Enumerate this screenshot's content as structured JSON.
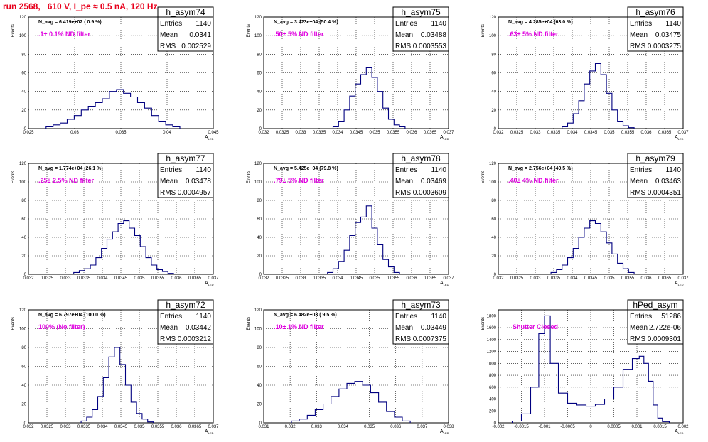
{
  "run_title": "run 2568,   610 V, I_pe ≈ 0.5 nA, 120 Hz",
  "stat_labels": {
    "entries": "Entries",
    "mean": "Mean",
    "rms": "RMS"
  },
  "chart_data": [
    {
      "type": "bar",
      "name": "h_asym74",
      "entries": "1140",
      "mean": "0.0341",
      "rms": "0.002529",
      "n_avg": "N_avg = 6.419e+02 ( 0.9 %)",
      "filter": ".1± 0.1% ND filter",
      "ylabel": "Events",
      "xlabel": "A",
      "xsub": "LED",
      "xlim": [
        0.024,
        0.045
      ],
      "ylim": [
        0,
        120
      ],
      "yticks": [
        0,
        20,
        40,
        60,
        80,
        100,
        120
      ],
      "xticks": [
        "0.025",
        "0.03",
        "0.035",
        "0.04",
        "0.045"
      ],
      "x": [
        0.0264,
        0.0272,
        0.028,
        0.0288,
        0.0296,
        0.0304,
        0.0312,
        0.032,
        0.0328,
        0.0336,
        0.0344,
        0.0352,
        0.036,
        0.0368,
        0.0376,
        0.0384,
        0.0392,
        0.04,
        0.0408
      ],
      "values": [
        2,
        4,
        6,
        10,
        14,
        20,
        24,
        28,
        32,
        40,
        42,
        38,
        34,
        28,
        22,
        14,
        8,
        4,
        2
      ]
    },
    {
      "type": "bar",
      "name": "h_asym75",
      "entries": "1140",
      "mean": "0.03488",
      "rms": "0.0003553",
      "n_avg": "N_avg = 3.423e+04 (50.4 %)",
      "filter": ".50± 5% ND filter",
      "ylabel": "Events",
      "xlabel": "A",
      "xsub": "LED",
      "xlim": [
        0.032,
        0.037
      ],
      "ylim": [
        0,
        120
      ],
      "yticks": [
        0,
        20,
        40,
        60,
        80,
        100,
        120
      ],
      "xticks": [
        "0.032",
        "0.0325",
        "0.033",
        "0.0335",
        "0.034",
        "0.0345",
        "0.035",
        "0.0355",
        "0.036",
        "0.0365",
        "0.037"
      ],
      "x": [
        0.03395,
        0.0341,
        0.03425,
        0.0344,
        0.03455,
        0.0347,
        0.03485,
        0.035,
        0.03515,
        0.0353,
        0.03545,
        0.0356,
        0.03575
      ],
      "values": [
        2,
        8,
        20,
        35,
        48,
        58,
        66,
        55,
        40,
        22,
        10,
        4,
        2
      ]
    },
    {
      "type": "bar",
      "name": "h_asym76",
      "entries": "1140",
      "mean": "0.03475",
      "rms": "0.0003275",
      "n_avg": "N_avg = 4.285e+04 (63.0 %)",
      "filter": ".63± 5% ND filter",
      "ylabel": "Events",
      "xlabel": "A",
      "xsub": "LED",
      "xlim": [
        0.032,
        0.037
      ],
      "ylim": [
        0,
        120
      ],
      "yticks": [
        0,
        20,
        40,
        60,
        80,
        100,
        120
      ],
      "xticks": [
        "0.032",
        "0.0325",
        "0.033",
        "0.0335",
        "0.034",
        "0.0345",
        "0.035",
        "0.0355",
        "0.036",
        "0.0365",
        "0.037"
      ],
      "x": [
        0.0338,
        0.03395,
        0.0341,
        0.03425,
        0.0344,
        0.03455,
        0.0347,
        0.03485,
        0.035,
        0.03515,
        0.0353,
        0.03545,
        0.0356
      ],
      "values": [
        2,
        6,
        16,
        30,
        48,
        62,
        70,
        58,
        38,
        20,
        8,
        3,
        1
      ]
    },
    {
      "type": "bar",
      "name": "h_asym77",
      "entries": "1140",
      "mean": "0.03478",
      "rms": "0.0004957",
      "n_avg": "N_avg = 1.774e+04 (26.1 %)",
      "filter": ".25± 2.5% ND filter",
      "ylabel": "Events",
      "xlabel": "A",
      "xsub": "LED",
      "xlim": [
        0.032,
        0.037
      ],
      "ylim": [
        0,
        120
      ],
      "yticks": [
        0,
        20,
        40,
        60,
        80,
        100,
        120
      ],
      "xticks": [
        "0.032",
        "0.0325",
        "0.033",
        "0.0335",
        "0.034",
        "0.0345",
        "0.035",
        "0.0355",
        "0.036",
        "0.0365",
        "0.037"
      ],
      "x": [
        0.0333,
        0.03345,
        0.0336,
        0.03375,
        0.0339,
        0.03405,
        0.0342,
        0.03435,
        0.0345,
        0.03465,
        0.0348,
        0.03495,
        0.0351,
        0.03525,
        0.0354,
        0.03555,
        0.0357,
        0.03585
      ],
      "values": [
        2,
        4,
        6,
        10,
        18,
        28,
        38,
        46,
        55,
        58,
        50,
        42,
        30,
        18,
        10,
        5,
        3,
        1
      ]
    },
    {
      "type": "bar",
      "name": "h_asym78",
      "entries": "1140",
      "mean": "0.03469",
      "rms": "0.0003609",
      "n_avg": "N_avg = 5.425e+04 (79.8 %)",
      "filter": ".79± 5% ND filter",
      "ylabel": "Events",
      "xlabel": "A",
      "xsub": "LED",
      "xlim": [
        0.032,
        0.037
      ],
      "ylim": [
        0,
        120
      ],
      "yticks": [
        0,
        20,
        40,
        60,
        80,
        100,
        120
      ],
      "xticks": [
        "0.032",
        "0.0325",
        "0.033",
        "0.0335",
        "0.034",
        "0.0345",
        "0.035",
        "0.0355",
        "0.036",
        "0.0365",
        "0.037"
      ],
      "x": [
        0.0338,
        0.03395,
        0.0341,
        0.03425,
        0.0344,
        0.03455,
        0.0347,
        0.03485,
        0.035,
        0.03515,
        0.0353,
        0.03545,
        0.0356
      ],
      "values": [
        2,
        6,
        14,
        26,
        42,
        56,
        62,
        74,
        50,
        32,
        16,
        8,
        2
      ]
    },
    {
      "type": "bar",
      "name": "h_asym79",
      "entries": "1140",
      "mean": "0.03463",
      "rms": "0.0004351",
      "n_avg": "N_avg = 2.756e+04 (40.5 %)",
      "filter": ".40± 4% ND filter",
      "ylabel": "Events",
      "xlabel": "A",
      "xsub": "LED",
      "xlim": [
        0.032,
        0.037
      ],
      "ylim": [
        0,
        120
      ],
      "yticks": [
        0,
        20,
        40,
        60,
        80,
        100,
        120
      ],
      "xticks": [
        "0.032",
        "0.0325",
        "0.033",
        "0.0335",
        "0.034",
        "0.0345",
        "0.035",
        "0.0355",
        "0.036",
        "0.0365",
        "0.037"
      ],
      "x": [
        0.0335,
        0.03365,
        0.0338,
        0.03395,
        0.0341,
        0.03425,
        0.0344,
        0.03455,
        0.0347,
        0.03485,
        0.035,
        0.03515,
        0.0353,
        0.03545,
        0.0356
      ],
      "values": [
        2,
        5,
        10,
        18,
        28,
        40,
        50,
        58,
        55,
        46,
        34,
        22,
        12,
        6,
        2
      ]
    },
    {
      "type": "bar",
      "name": "h_asym72",
      "entries": "1140",
      "mean": "0.03442",
      "rms": "0.0003212",
      "n_avg": "N_avg = 6.797e+04 (100.0 %)",
      "filter": "100% (No filter)",
      "ylabel": "Events",
      "xlabel": "A",
      "xsub": "LED",
      "xlim": [
        0.032,
        0.037
      ],
      "ylim": [
        0,
        120
      ],
      "yticks": [
        0,
        20,
        40,
        60,
        80,
        100,
        120
      ],
      "xticks": [
        "0.032",
        "0.0325",
        "0.033",
        "0.0335",
        "0.034",
        "0.0345",
        "0.035",
        "0.0355",
        "0.036",
        "0.0365",
        "0.037"
      ],
      "x": [
        0.0335,
        0.03365,
        0.0338,
        0.03395,
        0.0341,
        0.03425,
        0.0344,
        0.03455,
        0.0347,
        0.03485,
        0.035,
        0.03515,
        0.0353
      ],
      "values": [
        2,
        6,
        14,
        28,
        48,
        70,
        80,
        62,
        40,
        22,
        10,
        4,
        1
      ]
    },
    {
      "type": "bar",
      "name": "h_asym73",
      "entries": "1140",
      "mean": "0.03449",
      "rms": "0.0007375",
      "n_avg": "N_avg = 6.482e+03 ( 9.5 %)",
      "filter": ".10± 1% ND filter",
      "ylabel": "Events",
      "xlabel": "A",
      "xsub": "LED",
      "xlim": [
        0.031,
        0.038
      ],
      "ylim": [
        0,
        120
      ],
      "yticks": [
        0,
        20,
        40,
        60,
        80,
        100,
        120
      ],
      "xticks": [
        "0.031",
        "0.032",
        "0.033",
        "0.034",
        "0.035",
        "0.036",
        "0.037",
        "0.038"
      ],
      "x": [
        0.0322,
        0.0325,
        0.0328,
        0.0331,
        0.0334,
        0.0337,
        0.034,
        0.0343,
        0.0346,
        0.0349,
        0.0352,
        0.0355,
        0.0358,
        0.0361,
        0.0364
      ],
      "values": [
        2,
        4,
        8,
        14,
        20,
        28,
        36,
        42,
        44,
        40,
        32,
        22,
        12,
        6,
        2
      ]
    },
    {
      "type": "bar",
      "name": "hPed_asym",
      "entries": "51286",
      "mean": "2.722e-06",
      "rms": "0.0009301",
      "n_avg": "",
      "filter": "Shutter Closed",
      "ylabel": "Events",
      "xlabel": "A",
      "xsub": "LED",
      "xlim": [
        -0.002,
        0.002
      ],
      "ylim": [
        0,
        1900
      ],
      "yticks": [
        0,
        200,
        400,
        600,
        800,
        1000,
        1200,
        1400,
        1600,
        1800
      ],
      "xticks": [
        "-0.002",
        "-0.0015",
        "-0.001",
        "-0.0005",
        "0",
        "0.0005",
        "0.001",
        "0.0015",
        "0.002"
      ],
      "x": [
        -0.0016,
        -0.0014,
        -0.0012,
        -0.00105,
        -0.00095,
        -0.0008,
        -0.0006,
        -0.0004,
        -0.0002,
        0.0,
        0.0002,
        0.0004,
        0.0006,
        0.0008,
        0.001,
        0.0011,
        0.0012,
        0.0013,
        0.0014,
        0.0015,
        0.0016
      ],
      "values": [
        30,
        150,
        600,
        1500,
        1800,
        1000,
        500,
        330,
        300,
        280,
        310,
        400,
        600,
        900,
        1080,
        1120,
        1000,
        700,
        300,
        80,
        20
      ]
    }
  ]
}
